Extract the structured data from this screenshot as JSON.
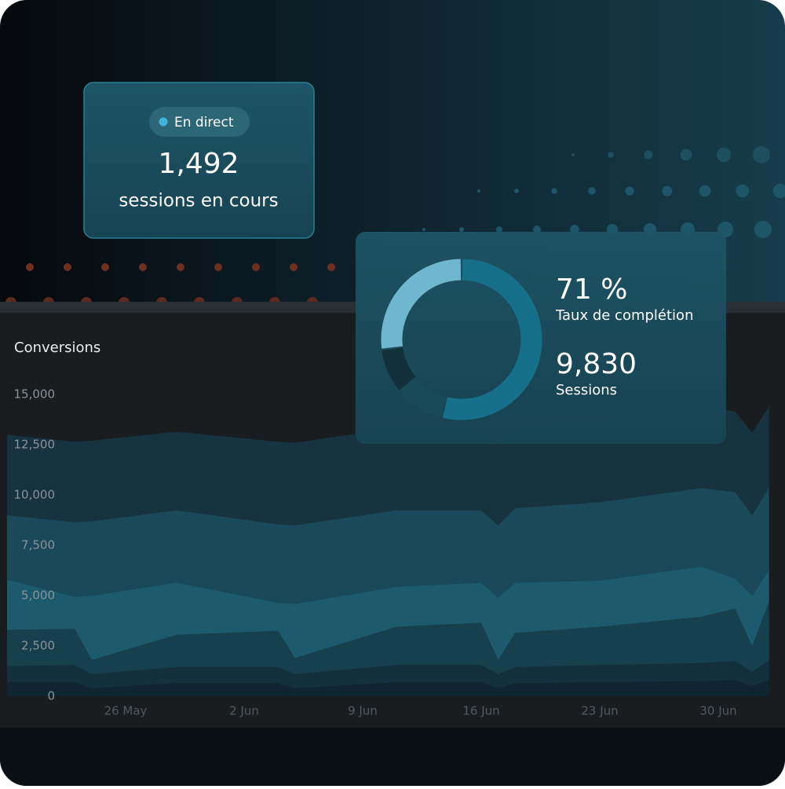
{
  "live_card": {
    "badge": "En direct",
    "value": "1,492",
    "label": "sessions en cours"
  },
  "donut_card": {
    "metrics": [
      {
        "value": "71 %",
        "label": "Taux de complétion"
      },
      {
        "value": "9,830",
        "label": "Sessions"
      }
    ]
  },
  "chart_data": [
    {
      "type": "area",
      "stacked": true,
      "title": "Conversions",
      "x": [
        "19 May",
        "23 May",
        "24 May",
        "29 May",
        "4 Jun",
        "5 Jun",
        "11 Jun",
        "16 Jun",
        "17 Jun",
        "18 Jun",
        "23 Jun",
        "29 Jun",
        "1 Jul",
        "2 Jul",
        "3 Jul"
      ],
      "xticks": [
        "26 May",
        "2 Jun",
        "9 Jun",
        "16 Jun",
        "23 Jun",
        "30 Jun"
      ],
      "ylim": [
        0,
        15000
      ],
      "yticks": [
        0,
        {
          "value": 2500,
          "label": "2,500"
        },
        {
          "value": 5000,
          "label": "5,000"
        },
        {
          "value": 7500,
          "label": "7,500"
        },
        {
          "value": 10000,
          "label": "10,000"
        },
        {
          "value": 12500,
          "label": "12,500"
        },
        {
          "value": 15000,
          "label": "15,000"
        }
      ],
      "series": [
        {
          "color": "#0f2630",
          "values": [
            700,
            700,
            400,
            650,
            650,
            400,
            700,
            700,
            400,
            650,
            700,
            750,
            800,
            500,
            800
          ]
        },
        {
          "color": "#13313d",
          "values": [
            800,
            850,
            700,
            800,
            800,
            700,
            850,
            850,
            700,
            800,
            850,
            900,
            950,
            700,
            1000
          ]
        },
        {
          "color": "#17404f",
          "values": [
            1800,
            1800,
            700,
            1600,
            1800,
            800,
            1900,
            2100,
            700,
            1700,
            1900,
            2300,
            2600,
            1300,
            2900
          ]
        },
        {
          "color": "#1d5a6d",
          "values": [
            2500,
            1600,
            3200,
            2600,
            1400,
            2700,
            2000,
            2000,
            3100,
            2500,
            2300,
            2500,
            1500,
            2500,
            1600
          ]
        },
        {
          "color": "#19495a",
          "values": [
            3200,
            3700,
            3700,
            3600,
            3900,
            3900,
            3800,
            3600,
            3600,
            3700,
            3900,
            3900,
            4300,
            4000,
            4100
          ]
        },
        {
          "color": "#16333f",
          "values": [
            4000,
            4000,
            4000,
            3900,
            4100,
            4100,
            4100,
            4000,
            4000,
            4100,
            4100,
            4100,
            4000,
            4100,
            4000
          ]
        }
      ]
    },
    {
      "type": "donut",
      "values": [
        54,
        10,
        9,
        27
      ],
      "colors": [
        "#17708a",
        "#184a5a",
        "#12313c",
        "#6fb7cf"
      ]
    }
  ]
}
